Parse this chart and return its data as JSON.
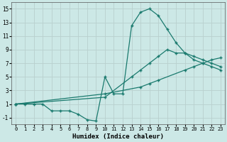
{
  "xlabel": "Humidex (Indice chaleur)",
  "xlim": [
    -0.5,
    23.5
  ],
  "ylim": [
    -2,
    16
  ],
  "xticks": [
    0,
    1,
    2,
    3,
    4,
    5,
    6,
    7,
    8,
    9,
    10,
    11,
    12,
    13,
    14,
    15,
    16,
    17,
    18,
    19,
    20,
    21,
    22,
    23
  ],
  "yticks": [
    -1,
    1,
    3,
    5,
    7,
    9,
    11,
    13,
    15
  ],
  "bg_color": "#cce8e6",
  "grid_color": "#b8d0ce",
  "line_color": "#1a7a6e",
  "line1_x": [
    0,
    1,
    2,
    3,
    4,
    5,
    6,
    7,
    8,
    9,
    10,
    11,
    12,
    13,
    14,
    15,
    16,
    17,
    18,
    19,
    20,
    21,
    22,
    23
  ],
  "line1_y": [
    1,
    1,
    1,
    1,
    0,
    0,
    0,
    -0.5,
    -1.3,
    -1.5,
    5,
    2.5,
    2.5,
    12.5,
    14.5,
    15,
    14,
    12,
    10,
    8.5,
    7.5,
    7,
    6.5,
    6
  ],
  "line2_x": [
    0,
    10,
    14,
    15,
    16,
    19,
    20,
    21,
    22,
    23
  ],
  "line2_y": [
    1,
    2.5,
    3.5,
    4,
    4.5,
    6,
    6.5,
    7,
    7.5,
    7.8
  ],
  "line3_x": [
    0,
    10,
    13,
    14,
    15,
    16,
    17,
    18,
    19,
    20,
    21,
    22,
    23
  ],
  "line3_y": [
    1,
    2,
    5,
    6,
    7,
    8,
    9,
    8.5,
    8.5,
    8,
    7.5,
    7,
    6.5
  ]
}
